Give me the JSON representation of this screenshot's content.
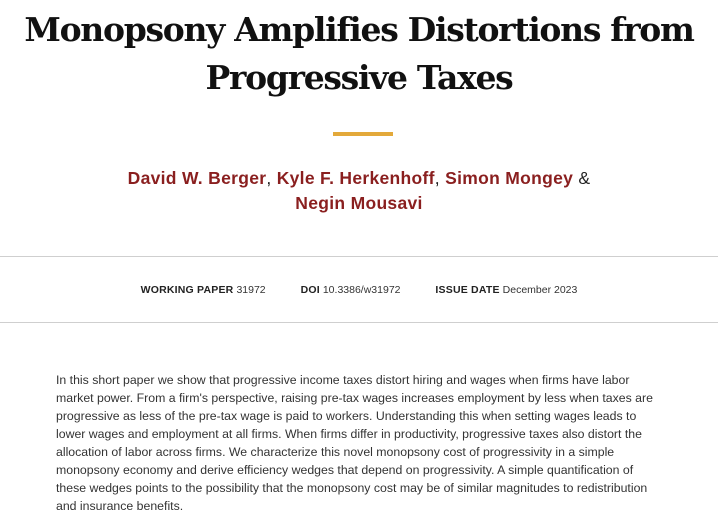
{
  "paper": {
    "title_line1": "Monopsony Amplifies Distortions from",
    "title_line2": "Progressive Taxes",
    "authors": [
      "David W. Berger",
      "Kyle F. Herkenhoff",
      "Simon Mongey",
      "Negin Mousavi"
    ],
    "author_separator": ",",
    "author_conjunction": "&"
  },
  "meta": {
    "working_paper_label": "WORKING PAPER",
    "working_paper_value": "31972",
    "doi_label": "DOI",
    "doi_value": "10.3386/w31972",
    "issue_date_label": "ISSUE DATE",
    "issue_date_value": "December 2023"
  },
  "abstract": "In this short paper we show that progressive income taxes distort hiring and wages when firms have labor market power. From a firm's perspective, raising pre-tax wages increases employment by less when taxes are progressive as less of the pre-tax wage is paid to workers. Understanding this when setting wages leads to lower wages and employment at all firms. When firms differ in productivity, progressive taxes also distort the allocation of labor across firms. We characterize this novel monopsony cost of progressivity in a simple monopsony economy and derive efficiency wedges that depend on progressivity. A simple quantification of these wedges points to the possibility that the monopsony cost may be of similar magnitudes to redistribution and insurance benefits.",
  "colors": {
    "accent_bar": "#e3a93a",
    "author_link": "#8a1f1f",
    "divider": "#cfcfcf"
  }
}
